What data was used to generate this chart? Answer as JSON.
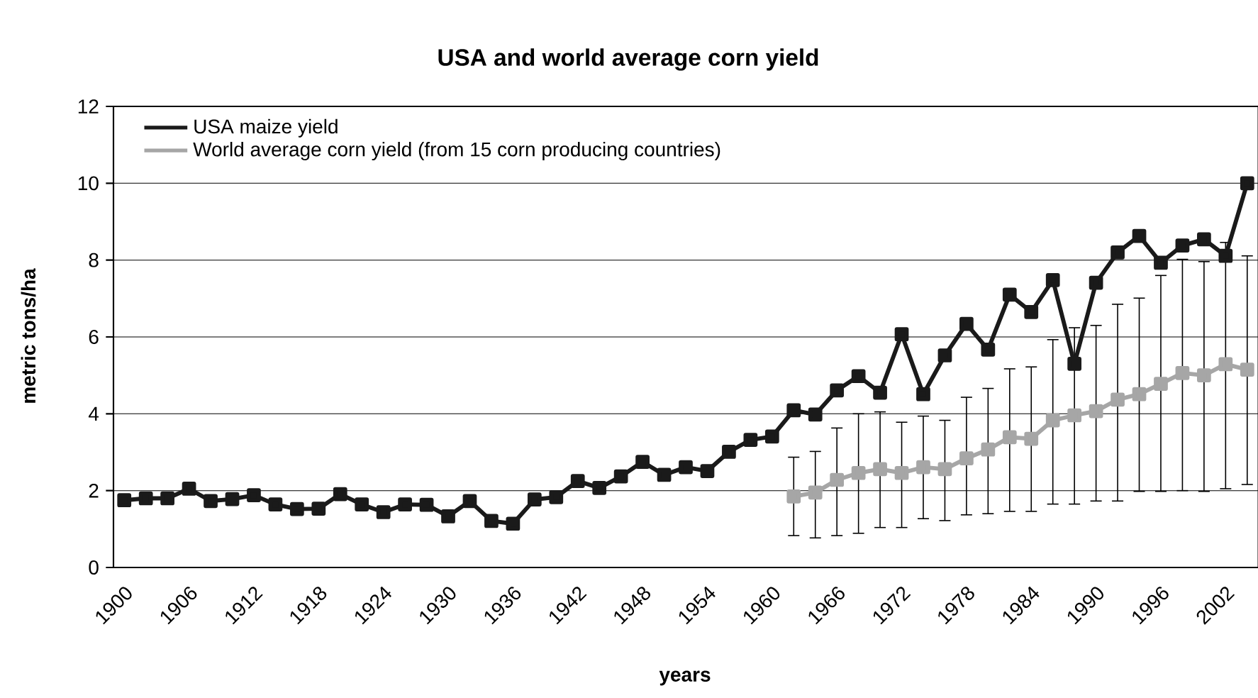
{
  "chart_data": {
    "type": "line",
    "title": "USA and world average corn yield",
    "xlabel": "years",
    "ylabel": "metric tons/ha",
    "categories": [
      "1900",
      null,
      null,
      "1906",
      null,
      null,
      "1912",
      null,
      null,
      "1918",
      null,
      null,
      "1924",
      null,
      null,
      "1930",
      null,
      null,
      "1936",
      null,
      null,
      "1942",
      null,
      null,
      "1948",
      null,
      null,
      "1954",
      null,
      null,
      "1960",
      null,
      null,
      "1966",
      null,
      null,
      "1972",
      null,
      null,
      "1978",
      null,
      null,
      "1984",
      null,
      null,
      "1990",
      null,
      null,
      "1996",
      null,
      null,
      "2002",
      null
    ],
    "ylim": [
      0,
      12
    ],
    "yticks": [
      0,
      2,
      4,
      6,
      8,
      10,
      12
    ],
    "grid": "y",
    "legend": "top left",
    "marker": "square",
    "series": [
      {
        "name": "USA maize yield",
        "color": "#1a1a1a",
        "values": [
          1.75,
          1.8,
          1.8,
          2.05,
          1.73,
          1.78,
          1.88,
          1.64,
          1.52,
          1.53,
          1.91,
          1.64,
          1.44,
          1.64,
          1.63,
          1.33,
          1.73,
          1.21,
          1.14,
          1.77,
          1.83,
          2.25,
          2.07,
          2.37,
          2.75,
          2.41,
          2.61,
          2.51,
          3.01,
          3.32,
          3.41,
          4.09,
          3.98,
          4.61,
          4.98,
          4.55,
          6.07,
          4.51,
          5.52,
          6.34,
          5.67,
          7.1,
          6.65,
          7.48,
          5.3,
          7.41,
          8.2,
          8.63,
          7.93,
          8.38,
          8.54,
          8.11,
          10.0
        ]
      },
      {
        "name": "World average corn yield (from 15 corn producing countries)",
        "color": "#a6a6a6",
        "values": [
          null,
          null,
          null,
          null,
          null,
          null,
          null,
          null,
          null,
          null,
          null,
          null,
          null,
          null,
          null,
          null,
          null,
          null,
          null,
          null,
          null,
          null,
          null,
          null,
          null,
          null,
          null,
          null,
          null,
          null,
          null,
          1.85,
          1.95,
          2.28,
          2.46,
          2.56,
          2.46,
          2.61,
          2.56,
          2.84,
          3.07,
          3.39,
          3.35,
          3.83,
          3.96,
          4.07,
          4.37,
          4.51,
          4.78,
          5.06,
          5.0,
          5.29,
          5.15
        ],
        "errors": [
          null,
          null,
          null,
          null,
          null,
          null,
          null,
          null,
          null,
          null,
          null,
          null,
          null,
          null,
          null,
          null,
          null,
          null,
          null,
          null,
          null,
          null,
          null,
          null,
          null,
          null,
          null,
          null,
          null,
          null,
          null,
          [
            0.83,
            2.87
          ],
          [
            0.77,
            3.02
          ],
          [
            0.83,
            3.63
          ],
          [
            0.89,
            4.0
          ],
          [
            1.04,
            4.05
          ],
          [
            1.04,
            3.78
          ],
          [
            1.27,
            3.94
          ],
          [
            1.22,
            3.83
          ],
          [
            1.37,
            4.43
          ],
          [
            1.4,
            4.66
          ],
          [
            1.46,
            5.17
          ],
          [
            1.46,
            5.22
          ],
          [
            1.65,
            5.93
          ],
          [
            1.65,
            6.24
          ],
          [
            1.73,
            6.3
          ],
          [
            1.73,
            6.85
          ],
          [
            1.98,
            7.01
          ],
          [
            1.98,
            7.6
          ],
          [
            2.0,
            8.02
          ],
          [
            1.98,
            7.96
          ],
          [
            2.05,
            8.46
          ],
          [
            2.16,
            8.11
          ]
        ]
      }
    ]
  }
}
